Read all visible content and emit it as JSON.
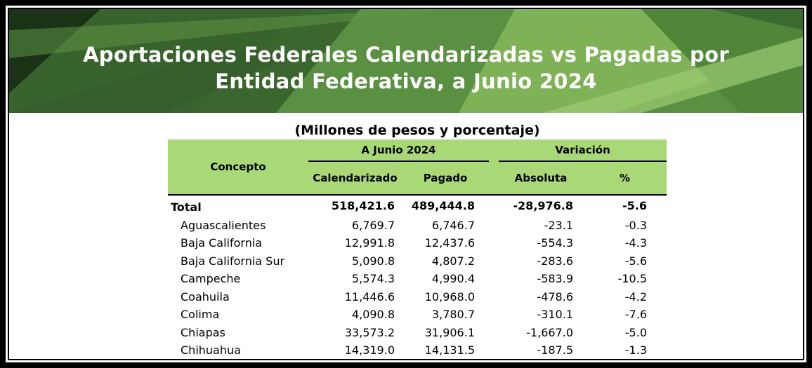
{
  "banner": {
    "title_line1": "Aportaciones Federales Calendarizadas vs Pagadas por",
    "title_line2": "Entidad Federativa, a Junio 2024",
    "colors": {
      "dark": "#1e3a1c",
      "mid": "#4b7f38",
      "light": "#8fbf63"
    }
  },
  "subtitle": "(Millones de pesos y porcentaje)",
  "table": {
    "header": {
      "concepto": "Concepto",
      "group1": "A Junio 2024",
      "group2": "Variación",
      "calendarizado": "Calendarizado",
      "pagado": "Pagado",
      "absoluta": "Absoluta",
      "pct": "%"
    },
    "header_color": "#a9d977",
    "rows": [
      {
        "name": "Total",
        "cal": "518,421.6",
        "pag": "489,444.8",
        "abs": "-28,976.8",
        "pct": "-5.6"
      },
      {
        "name": "Aguascalientes",
        "cal": "6,769.7",
        "pag": "6,746.7",
        "abs": "-23.1",
        "pct": "-0.3"
      },
      {
        "name": "Baja California",
        "cal": "12,991.8",
        "pag": "12,437.6",
        "abs": "-554.3",
        "pct": "-4.3"
      },
      {
        "name": "Baja California Sur",
        "cal": "5,090.8",
        "pag": "4,807.2",
        "abs": "-283.6",
        "pct": "-5.6"
      },
      {
        "name": "Campeche",
        "cal": "5,574.3",
        "pag": "4,990.4",
        "abs": "-583.9",
        "pct": "-10.5"
      },
      {
        "name": "Coahuila",
        "cal": "11,446.6",
        "pag": "10,968.0",
        "abs": "-478.6",
        "pct": "-4.2"
      },
      {
        "name": "Colima",
        "cal": "4,090.8",
        "pag": "3,780.7",
        "abs": "-310.1",
        "pct": "-7.6"
      },
      {
        "name": "Chiapas",
        "cal": "33,573.2",
        "pag": "31,906.1",
        "abs": "-1,667.0",
        "pct": "-5.0"
      },
      {
        "name": "Chihuahua",
        "cal": "14,319.0",
        "pag": "14,131.5",
        "abs": "-187.5",
        "pct": "-1.3"
      }
    ]
  }
}
